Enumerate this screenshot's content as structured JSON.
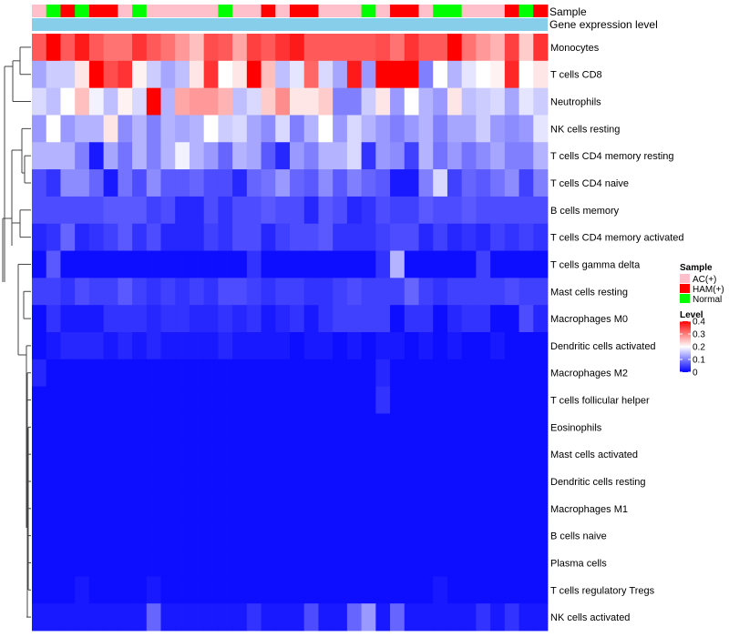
{
  "chart_data": {
    "type": "heatmap",
    "annotation_tracks": [
      "Sample",
      "Gene expression level"
    ],
    "sample_groups": [
      "AC(+)",
      "HAM(+)",
      "Normal"
    ],
    "sample_annotation": [
      "AC(+)",
      "Normal",
      "HAM(+)",
      "Normal",
      "HAM(+)",
      "HAM(+)",
      "AC(+)",
      "Normal",
      "AC(+)",
      "AC(+)",
      "AC(+)",
      "AC(+)",
      "AC(+)",
      "Normal",
      "AC(+)",
      "AC(+)",
      "HAM(+)",
      "AC(+)",
      "HAM(+)",
      "HAM(+)",
      "AC(+)",
      "AC(+)",
      "AC(+)",
      "Normal",
      "AC(+)",
      "HAM(+)",
      "HAM(+)",
      "AC(+)",
      "Normal",
      "Normal",
      "AC(+)",
      "AC(+)",
      "AC(+)",
      "HAM(+)",
      "Normal",
      "HAM(+)"
    ],
    "rows": [
      "Monocytes",
      "T cells CD8",
      "Neutrophils",
      "NK cells resting",
      "T cells CD4 memory resting",
      "T cells CD4 naive",
      "B cells memory",
      "T cells CD4 memory activated",
      "T cells gamma delta",
      "Mast cells resting",
      "Macrophages M0",
      "Dendritic cells activated",
      "Macrophages M2",
      "T cells follicular helper",
      "Eosinophils",
      "Mast cells activated",
      "Dendritic cells resting",
      "Macrophages M1",
      "B cells naive",
      "Plasma cells",
      "T cells regulatory  Tregs",
      "NK cells activated"
    ],
    "values": [
      [
        0.33,
        0.4,
        0.33,
        0.38,
        0.33,
        0.31,
        0.31,
        0.36,
        0.33,
        0.31,
        0.28,
        0.25,
        0.34,
        0.33,
        0.27,
        0.35,
        0.33,
        0.36,
        0.38,
        0.33,
        0.33,
        0.33,
        0.33,
        0.33,
        0.34,
        0.31,
        0.36,
        0.33,
        0.33,
        0.4,
        0.31,
        0.28,
        0.26,
        0.35,
        0.24,
        0.36
      ],
      [
        0.13,
        0.16,
        0.16,
        0.22,
        0.4,
        0.34,
        0.36,
        0.21,
        0.16,
        0.13,
        0.15,
        0.22,
        0.36,
        0.2,
        0.22,
        0.4,
        0.25,
        0.15,
        0.18,
        0.32,
        0.17,
        0.13,
        0.38,
        0.12,
        0.4,
        0.4,
        0.4,
        0.1,
        0.2,
        0.14,
        0.18,
        0.2,
        0.21,
        0.37,
        0.2,
        0.22
      ],
      [
        0.17,
        0.15,
        0.2,
        0.25,
        0.19,
        0.15,
        0.21,
        0.17,
        0.4,
        0.14,
        0.27,
        0.28,
        0.28,
        0.26,
        0.15,
        0.17,
        0.24,
        0.29,
        0.22,
        0.22,
        0.24,
        0.1,
        0.1,
        0.16,
        0.22,
        0.12,
        0.2,
        0.14,
        0.12,
        0.22,
        0.15,
        0.16,
        0.17,
        0.13,
        0.18,
        0.16
      ],
      [
        0.12,
        0.2,
        0.12,
        0.14,
        0.14,
        0.22,
        0.11,
        0.14,
        0.1,
        0.14,
        0.13,
        0.14,
        0.2,
        0.16,
        0.17,
        0.13,
        0.11,
        0.17,
        0.1,
        0.14,
        0.2,
        0.12,
        0.17,
        0.14,
        0.12,
        0.1,
        0.12,
        0.14,
        0.1,
        0.13,
        0.13,
        0.16,
        0.12,
        0.11,
        0.12,
        0.18
      ],
      [
        0.14,
        0.14,
        0.14,
        0.1,
        0.02,
        0.13,
        0.09,
        0.14,
        0.1,
        0.14,
        0.19,
        0.14,
        0.12,
        0.08,
        0.14,
        0.13,
        0.07,
        0.03,
        0.12,
        0.1,
        0.14,
        0.14,
        0.17,
        0.04,
        0.12,
        0.11,
        0.05,
        0.14,
        0.09,
        0.12,
        0.09,
        0.11,
        0.13,
        0.1,
        0.1,
        0.14
      ],
      [
        0.06,
        0.04,
        0.11,
        0.11,
        0.08,
        0.02,
        0.09,
        0.06,
        0.11,
        0.07,
        0.07,
        0.08,
        0.06,
        0.06,
        0.03,
        0.08,
        0.09,
        0.12,
        0.08,
        0.07,
        0.11,
        0.07,
        0.1,
        0.08,
        0.07,
        0.02,
        0.02,
        0.1,
        0.17,
        0.05,
        0.08,
        0.07,
        0.09,
        0.11,
        0.05,
        0.1
      ],
      [
        0.06,
        0.06,
        0.06,
        0.06,
        0.06,
        0.07,
        0.07,
        0.07,
        0.05,
        0.06,
        0.03,
        0.03,
        0.06,
        0.04,
        0.06,
        0.06,
        0.07,
        0.06,
        0.06,
        0.03,
        0.07,
        0.06,
        0.03,
        0.04,
        0.06,
        0.05,
        0.05,
        0.07,
        0.06,
        0.06,
        0.07,
        0.06,
        0.06,
        0.06,
        0.06,
        0.06
      ],
      [
        0.03,
        0.04,
        0.08,
        0.03,
        0.04,
        0.05,
        0.07,
        0.04,
        0.06,
        0.03,
        0.03,
        0.03,
        0.05,
        0.04,
        0.06,
        0.06,
        0.03,
        0.05,
        0.06,
        0.06,
        0.07,
        0.04,
        0.04,
        0.04,
        0.05,
        0.06,
        0.06,
        0.03,
        0.05,
        0.03,
        0.04,
        0.03,
        0.05,
        0.04,
        0.05,
        0.04
      ],
      [
        0.01,
        0.07,
        0.01,
        0.01,
        0.01,
        0.01,
        0.01,
        0.01,
        0.01,
        0.01,
        0.01,
        0.01,
        0.01,
        0.01,
        0.01,
        0.04,
        0.01,
        0.01,
        0.01,
        0.01,
        0.01,
        0.01,
        0.01,
        0.01,
        0.04,
        0.14,
        0.01,
        0.01,
        0.01,
        0.01,
        0.01,
        0.05,
        0.01,
        0.01,
        0.01,
        0.01
      ],
      [
        0.05,
        0.05,
        0.04,
        0.06,
        0.05,
        0.05,
        0.07,
        0.05,
        0.04,
        0.05,
        0.04,
        0.05,
        0.04,
        0.06,
        0.06,
        0.05,
        0.04,
        0.05,
        0.05,
        0.04,
        0.04,
        0.05,
        0.06,
        0.05,
        0.05,
        0.05,
        0.08,
        0.05,
        0.04,
        0.05,
        0.05,
        0.05,
        0.05,
        0.06,
        0.05,
        0.05
      ],
      [
        0.01,
        0.04,
        0.02,
        0.02,
        0.02,
        0.04,
        0.04,
        0.04,
        0.03,
        0.04,
        0.04,
        0.03,
        0.03,
        0.04,
        0.03,
        0.04,
        0.02,
        0.03,
        0.04,
        0.02,
        0.04,
        0.05,
        0.05,
        0.05,
        0.05,
        0.01,
        0.04,
        0.04,
        0.01,
        0.03,
        0.04,
        0.04,
        0.01,
        0.01,
        0.06,
        0.03
      ],
      [
        0.01,
        0.02,
        0.03,
        0.03,
        0.03,
        0.02,
        0.03,
        0.02,
        0.03,
        0.02,
        0.02,
        0.02,
        0.02,
        0.03,
        0.02,
        0.02,
        0.02,
        0.02,
        0.01,
        0.02,
        0.02,
        0.01,
        0.02,
        0.01,
        0.02,
        0.02,
        0.01,
        0.02,
        0.01,
        0.02,
        0.01,
        0.01,
        0.02,
        0.01,
        0.01,
        0.01
      ],
      [
        0.03,
        0.01,
        0.01,
        0.01,
        0.01,
        0.01,
        0.01,
        0.01,
        0.01,
        0.01,
        0.01,
        0.01,
        0.01,
        0.01,
        0.01,
        0.01,
        0.01,
        0.01,
        0.01,
        0.01,
        0.01,
        0.01,
        0.01,
        0.01,
        0.03,
        0.01,
        0.01,
        0.01,
        0.01,
        0.01,
        0.01,
        0.01,
        0.01,
        0.01,
        0.01,
        0.01
      ],
      [
        0.01,
        0.01,
        0.01,
        0.01,
        0.01,
        0.01,
        0.01,
        0.01,
        0.01,
        0.01,
        0.01,
        0.01,
        0.01,
        0.01,
        0.01,
        0.01,
        0.01,
        0.01,
        0.01,
        0.01,
        0.01,
        0.01,
        0.01,
        0.01,
        0.04,
        0.01,
        0.01,
        0.01,
        0.01,
        0.01,
        0.01,
        0.01,
        0.01,
        0.01,
        0.01,
        0.01
      ],
      [
        0.01,
        0.01,
        0.01,
        0.01,
        0.01,
        0.01,
        0.01,
        0.01,
        0.01,
        0.01,
        0.01,
        0.01,
        0.01,
        0.01,
        0.01,
        0.01,
        0.01,
        0.01,
        0.01,
        0.01,
        0.01,
        0.01,
        0.01,
        0.01,
        0.01,
        0.01,
        0.01,
        0.01,
        0.01,
        0.01,
        0.01,
        0.01,
        0.01,
        0.01,
        0.01,
        0.01
      ],
      [
        0.01,
        0.01,
        0.01,
        0.01,
        0.01,
        0.01,
        0.01,
        0.01,
        0.01,
        0.01,
        0.01,
        0.01,
        0.01,
        0.01,
        0.01,
        0.01,
        0.01,
        0.01,
        0.01,
        0.01,
        0.01,
        0.01,
        0.01,
        0.01,
        0.01,
        0.01,
        0.01,
        0.01,
        0.01,
        0.01,
        0.01,
        0.01,
        0.01,
        0.01,
        0.01,
        0.01
      ],
      [
        0.01,
        0.01,
        0.01,
        0.01,
        0.01,
        0.01,
        0.01,
        0.01,
        0.01,
        0.01,
        0.01,
        0.01,
        0.01,
        0.01,
        0.01,
        0.01,
        0.01,
        0.01,
        0.01,
        0.01,
        0.01,
        0.01,
        0.01,
        0.01,
        0.01,
        0.01,
        0.01,
        0.01,
        0.01,
        0.01,
        0.01,
        0.01,
        0.01,
        0.01,
        0.01,
        0.01
      ],
      [
        0.01,
        0.01,
        0.01,
        0.01,
        0.01,
        0.01,
        0.01,
        0.01,
        0.01,
        0.01,
        0.01,
        0.01,
        0.01,
        0.01,
        0.01,
        0.01,
        0.01,
        0.01,
        0.01,
        0.01,
        0.01,
        0.01,
        0.01,
        0.01,
        0.01,
        0.01,
        0.01,
        0.01,
        0.01,
        0.01,
        0.01,
        0.01,
        0.01,
        0.01,
        0.01,
        0.01
      ],
      [
        0.01,
        0.01,
        0.01,
        0.01,
        0.01,
        0.01,
        0.01,
        0.01,
        0.01,
        0.01,
        0.01,
        0.01,
        0.01,
        0.01,
        0.01,
        0.01,
        0.01,
        0.01,
        0.01,
        0.01,
        0.01,
        0.01,
        0.01,
        0.01,
        0.01,
        0.01,
        0.01,
        0.01,
        0.01,
        0.01,
        0.01,
        0.01,
        0.01,
        0.01,
        0.01,
        0.01
      ],
      [
        0.01,
        0.01,
        0.01,
        0.01,
        0.01,
        0.01,
        0.01,
        0.01,
        0.01,
        0.01,
        0.01,
        0.01,
        0.01,
        0.01,
        0.01,
        0.01,
        0.01,
        0.01,
        0.01,
        0.01,
        0.01,
        0.01,
        0.01,
        0.01,
        0.01,
        0.01,
        0.01,
        0.01,
        0.01,
        0.01,
        0.01,
        0.01,
        0.01,
        0.01,
        0.01,
        0.01
      ],
      [
        0.01,
        0.01,
        0.01,
        0.02,
        0.01,
        0.01,
        0.01,
        0.01,
        0.02,
        0.01,
        0.01,
        0.01,
        0.01,
        0.01,
        0.01,
        0.01,
        0.01,
        0.01,
        0.01,
        0.01,
        0.01,
        0.01,
        0.01,
        0.01,
        0.01,
        0.01,
        0.01,
        0.01,
        0.02,
        0.01,
        0.01,
        0.01,
        0.01,
        0.01,
        0.01,
        0.01
      ],
      [
        0.02,
        0.02,
        0.02,
        0.02,
        0.02,
        0.02,
        0.02,
        0.02,
        0.08,
        0.02,
        0.02,
        0.02,
        0.02,
        0.02,
        0.02,
        0.04,
        0.02,
        0.02,
        0.02,
        0.06,
        0.02,
        0.02,
        0.08,
        0.12,
        0.02,
        0.08,
        0.02,
        0.02,
        0.02,
        0.02,
        0.02,
        0.04,
        0.02,
        0.04,
        0.02,
        0.02
      ]
    ],
    "legend": {
      "sample_title": "Sample",
      "level_title": "Level",
      "level_ticks": [
        "0.4",
        "0.3",
        "0.2",
        "0.1",
        "0"
      ],
      "level_range": [
        0,
        0.4
      ],
      "placement": "right"
    },
    "colors": {
      "low": "#0000ff",
      "mid": "#ffffff",
      "high": "#ff0000",
      "AC(+)": "#ffc0cb",
      "HAM(+)": "#ff0000",
      "Normal": "#00ff00",
      "gene_expression_track": "#87ceeb"
    }
  }
}
